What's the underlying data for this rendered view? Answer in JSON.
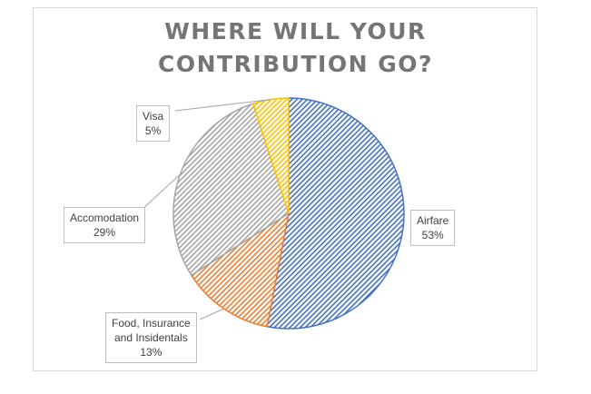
{
  "chart_data": {
    "type": "pie",
    "title_lines": [
      "WHERE WILL YOUR",
      "CONTRIBUTION GO?"
    ],
    "slices": [
      {
        "label": "Airfare",
        "value": 53,
        "value_label": "53%",
        "color": "#4472c4",
        "fill": "#ffffff"
      },
      {
        "label": "Food, Insurance and Insidentals",
        "label_lines": [
          "Food, Insurance",
          "and Insidentals"
        ],
        "value": 13,
        "value_label": "13%",
        "color": "#ed7d31",
        "fill": "#ffffff"
      },
      {
        "label": "Accomodation",
        "value": 29,
        "value_label": "29%",
        "color": "#a5a5a5",
        "fill": "#ffffff"
      },
      {
        "label": "Visa",
        "value": 5,
        "value_label": "5%",
        "color": "#ffc000",
        "fill": "#ffffff"
      }
    ],
    "start_angle_deg": 0,
    "direction": "clockwise",
    "pattern": "diagonal-hatch",
    "labels": "outside-with-leader-lines",
    "legend": "none"
  }
}
